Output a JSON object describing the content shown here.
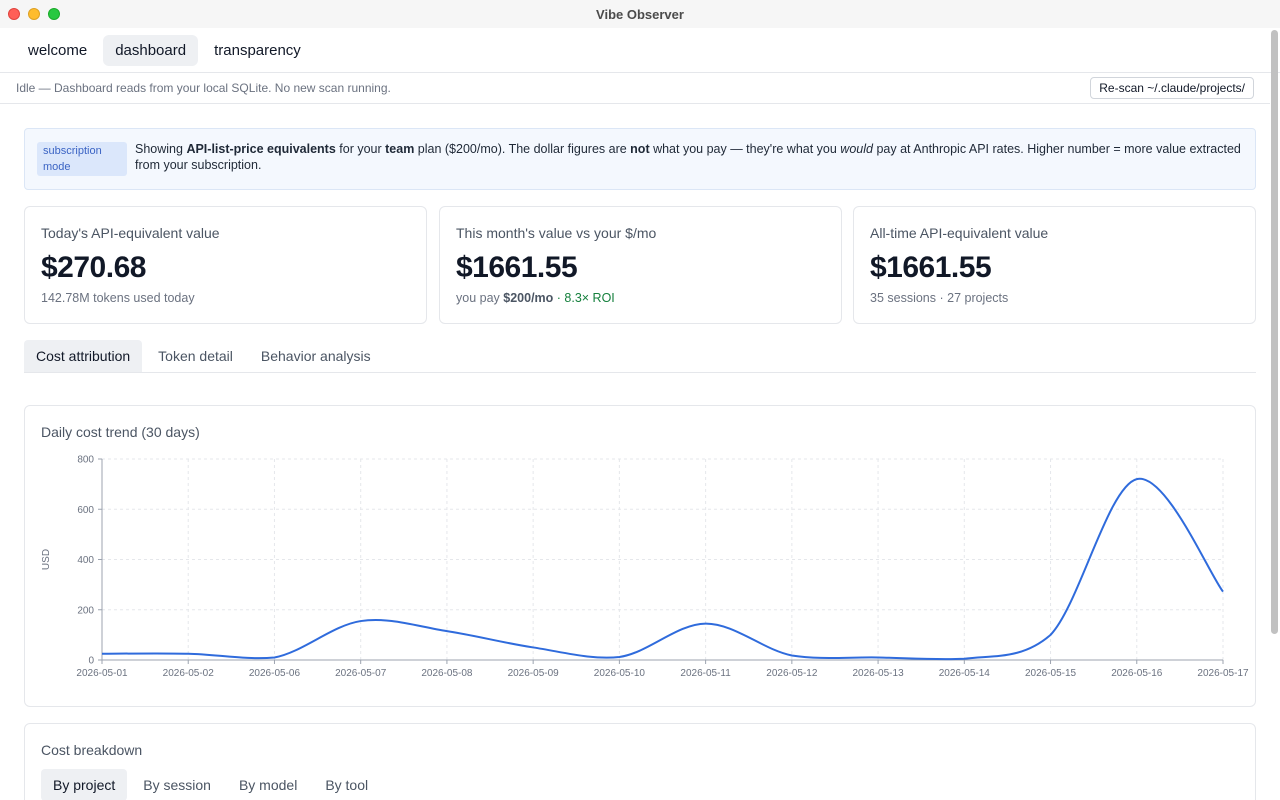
{
  "window": {
    "title": "Vibe Observer"
  },
  "nav": {
    "tabs": [
      {
        "label": "welcome"
      },
      {
        "label": "dashboard"
      },
      {
        "label": "transparency"
      }
    ]
  },
  "status": {
    "text": "Idle — Dashboard reads from your local SQLite. No new scan running.",
    "rescan_label": "Re-scan ~/.claude/projects/"
  },
  "notice": {
    "badge": "subscription mode",
    "p1": "Showing ",
    "b1": "API-list-price equivalents",
    "p2": " for your ",
    "b2": "team",
    "p3": " plan ($200/mo). The dollar figures are ",
    "b3": "not",
    "p4": " what you pay — they're what you ",
    "i1": "would",
    "p5": " pay at Anthropic API rates. Higher number = more value extracted from your subscription."
  },
  "cards": {
    "today": {
      "label": "Today's API-equivalent value",
      "value": "$270.68",
      "sub": "142.78M tokens used today"
    },
    "month": {
      "label": "This month's value vs your $/mo",
      "value": "$1661.55",
      "sub_prefix": "you pay ",
      "sub_bold": "$200/mo",
      "roi": " · 8.3× ROI"
    },
    "alltime": {
      "label": "All-time API-equivalent value",
      "value": "$1661.55",
      "sub": "35 sessions · 27 projects"
    }
  },
  "subtabs": [
    {
      "label": "Cost attribution"
    },
    {
      "label": "Token detail"
    },
    {
      "label": "Behavior analysis"
    }
  ],
  "chart_panel": {
    "title": "Daily cost trend (30 days)"
  },
  "chart_data": {
    "type": "line",
    "title": "Daily cost trend (30 days)",
    "xlabel": "",
    "ylabel": "USD",
    "x": [
      "2026-05-01",
      "2026-05-02",
      "2026-05-06",
      "2026-05-07",
      "2026-05-08",
      "2026-05-09",
      "2026-05-10",
      "2026-05-11",
      "2026-05-12",
      "2026-05-13",
      "2026-05-14",
      "2026-05-15",
      "2026-05-16",
      "2026-05-17"
    ],
    "series": [
      {
        "values": [
          25,
          25,
          10,
          155,
          115,
          50,
          12,
          145,
          18,
          10,
          5,
          100,
          720,
          272
        ]
      }
    ],
    "ylim": [
      0,
      800
    ],
    "yticks": [
      0,
      200,
      400,
      600,
      800
    ],
    "grid": true,
    "color": "#2f6bdc"
  },
  "breakdown": {
    "title": "Cost breakdown",
    "tabs": [
      {
        "label": "By project"
      },
      {
        "label": "By session"
      },
      {
        "label": "By model"
      },
      {
        "label": "By tool"
      }
    ]
  }
}
